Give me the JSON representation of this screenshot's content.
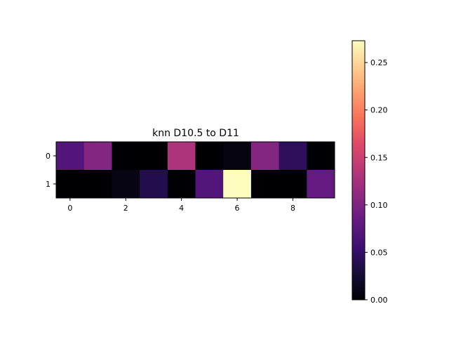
{
  "chart_data": {
    "type": "heatmap",
    "title": "knn D10.5 to D11",
    "xlabel": "",
    "ylabel": "",
    "colormap": "magma",
    "rows": [
      0,
      1
    ],
    "columns": [
      0,
      1,
      2,
      3,
      4,
      5,
      6,
      7,
      8,
      9
    ],
    "values": [
      [
        0.07,
        0.103,
        0.0,
        0.0,
        0.13,
        0.0,
        0.006,
        0.103,
        0.045,
        0.0
      ],
      [
        0.0,
        0.0,
        0.009,
        0.038,
        0.0,
        0.07,
        0.273,
        0.0,
        0.0,
        0.082
      ]
    ],
    "x_ticks": [
      "0",
      "2",
      "4",
      "6",
      "8"
    ],
    "y_ticks": [
      "0",
      "1"
    ],
    "colorbar": {
      "vmin": 0.0,
      "vmax": 0.273,
      "ticks": [
        "0.00",
        "0.05",
        "0.10",
        "0.15",
        "0.20",
        "0.25"
      ]
    },
    "grid": false
  }
}
